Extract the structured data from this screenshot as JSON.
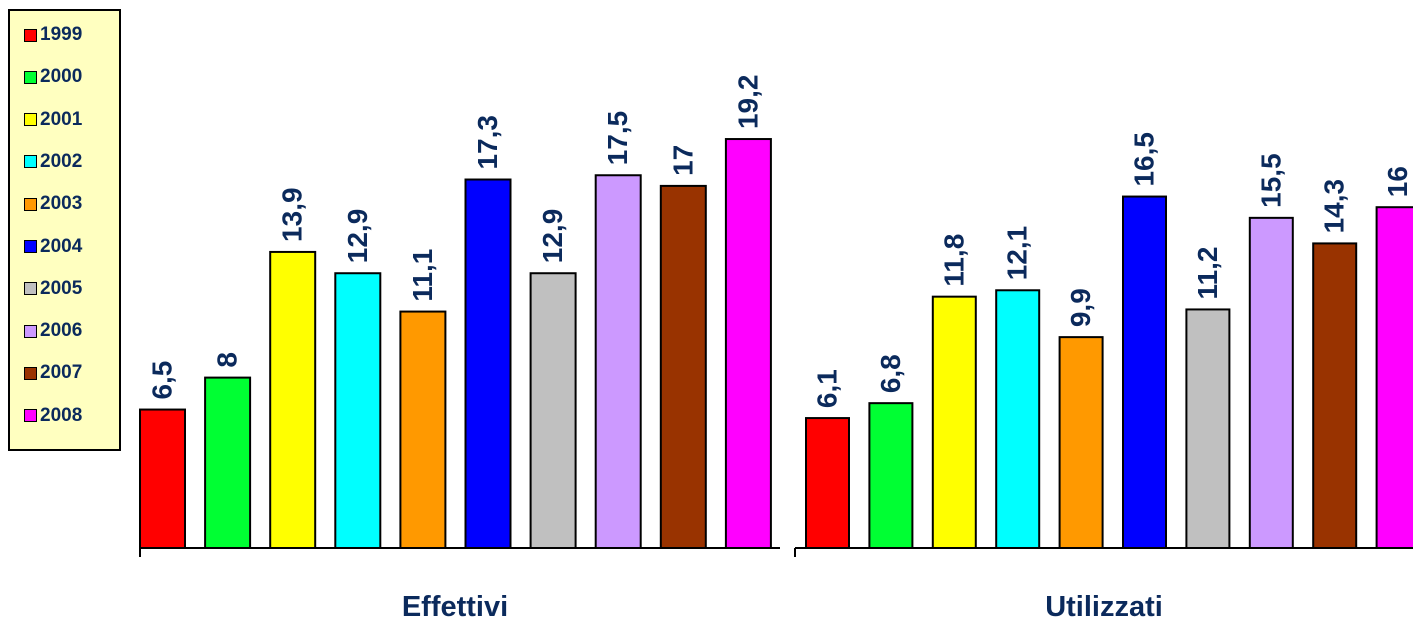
{
  "chart_data": {
    "type": "bar",
    "series_names": [
      "1999",
      "2000",
      "2001",
      "2002",
      "2003",
      "2004",
      "2005",
      "2006",
      "2007",
      "2008"
    ],
    "colors": [
      "#ff0000",
      "#00ff33",
      "#ffff00",
      "#00ffff",
      "#ff9900",
      "#0000ff",
      "#c0c0c0",
      "#cc99ff",
      "#993300",
      "#ff00ff"
    ],
    "groups": [
      {
        "label": "Effettivi",
        "values": [
          6.5,
          8,
          13.9,
          12.9,
          11.1,
          17.3,
          12.9,
          17.5,
          17,
          19.2
        ],
        "value_labels": [
          "6,5",
          "8",
          "13,9",
          "12,9",
          "11,1",
          "17,3",
          "12,9",
          "17,5",
          "17",
          "19,2"
        ]
      },
      {
        "label": "Utilizzati",
        "values": [
          6.1,
          6.8,
          11.8,
          12.1,
          9.9,
          16.5,
          11.2,
          15.5,
          14.3,
          16
        ],
        "value_labels": [
          "6,1",
          "6,8",
          "11,8",
          "12,1",
          "9,9",
          "16,5",
          "11,2",
          "15,5",
          "14,3",
          "16"
        ]
      }
    ],
    "legend_position": "left",
    "label_color": "#0b2a5c",
    "ylim": [
      0,
      19.2
    ]
  }
}
